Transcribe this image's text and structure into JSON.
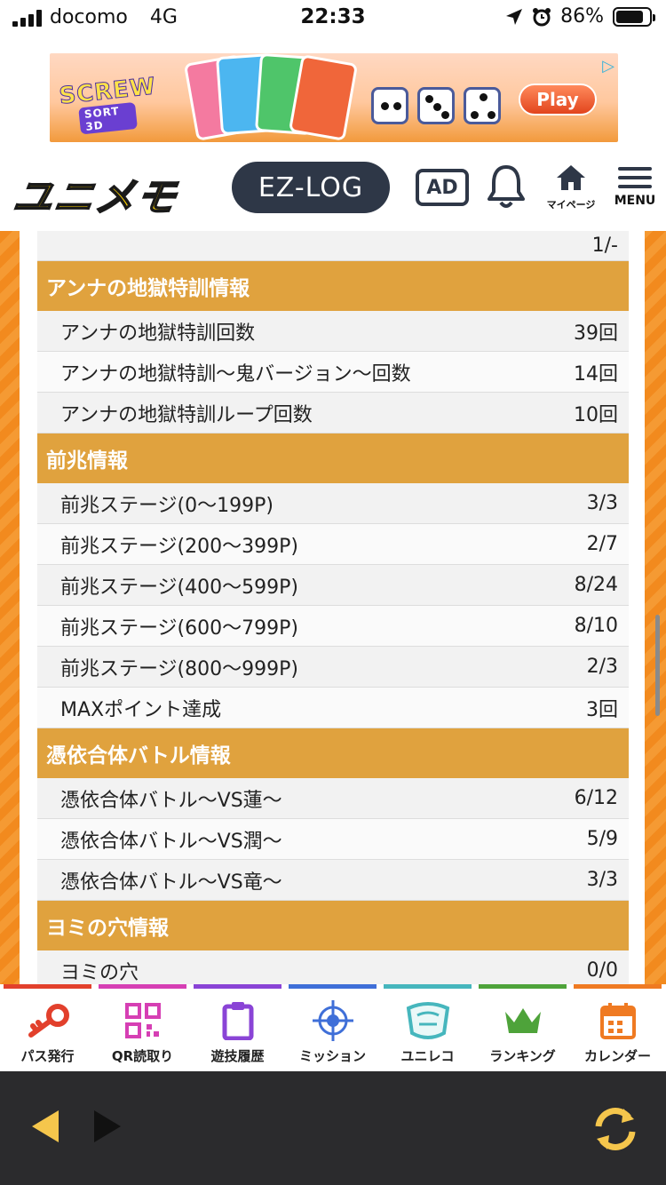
{
  "status_bar": {
    "carrier": "docomo",
    "network": "4G",
    "time": "22:33",
    "battery": "86%"
  },
  "ad": {
    "logo": "SCREW",
    "logo_sub": "SORT 3D",
    "play_label": "Play"
  },
  "header": {
    "logo": "ユニメモ",
    "ezlog_label": "EZ-LOG",
    "ad_label": "AD",
    "mypage_label": "マイページ",
    "menu_label": "MENU"
  },
  "table": {
    "top_value": "1/-",
    "sections": [
      {
        "title": "アンナの地獄特訓情報",
        "rows": [
          {
            "label": "アンナの地獄特訓回数",
            "value": "39回"
          },
          {
            "label": "アンナの地獄特訓〜鬼バージョン〜回数",
            "value": "14回"
          },
          {
            "label": "アンナの地獄特訓ループ回数",
            "value": "10回"
          }
        ]
      },
      {
        "title": "前兆情報",
        "rows": [
          {
            "label": "前兆ステージ(0〜199P)",
            "value": "3/3"
          },
          {
            "label": "前兆ステージ(200〜399P)",
            "value": "2/7"
          },
          {
            "label": "前兆ステージ(400〜599P)",
            "value": "8/24"
          },
          {
            "label": "前兆ステージ(600〜799P)",
            "value": "8/10"
          },
          {
            "label": "前兆ステージ(800〜999P)",
            "value": "2/3"
          },
          {
            "label": "MAXポイント達成",
            "value": "3回"
          }
        ]
      },
      {
        "title": "憑依合体バトル情報",
        "rows": [
          {
            "label": "憑依合体バトル〜VS蓮〜",
            "value": "6/12"
          },
          {
            "label": "憑依合体バトル〜VS潤〜",
            "value": "5/9"
          },
          {
            "label": "憑依合体バトル〜VS竜〜",
            "value": "3/3"
          }
        ]
      },
      {
        "title": "ヨミの穴情報",
        "rows": [
          {
            "label": "ヨミの穴",
            "value": "0/0"
          }
        ]
      }
    ]
  },
  "bottom_nav": {
    "items": [
      {
        "label": "パス発行",
        "icon": "key-icon",
        "color": "#e2402c"
      },
      {
        "label": "QR読取り",
        "icon": "qr-code-icon",
        "color": "#d63fb4"
      },
      {
        "label": "遊技履歴",
        "icon": "clipboard-icon",
        "color": "#8a44d6"
      },
      {
        "label": "ミッション",
        "icon": "target-icon",
        "color": "#3f6fd8"
      },
      {
        "label": "ユニレコ",
        "icon": "unireco-icon",
        "color": "#46b6bd"
      },
      {
        "label": "ランキング",
        "icon": "crown-icon",
        "color": "#4ea33a"
      },
      {
        "label": "カレンダー",
        "icon": "calendar-icon",
        "color": "#ef7a22"
      }
    ]
  }
}
